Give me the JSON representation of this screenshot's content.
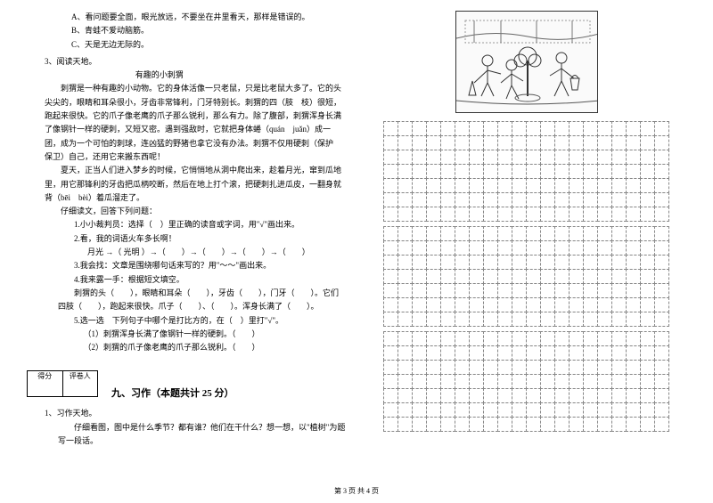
{
  "left": {
    "optA": "A、看问题要全面，眼光放远，不要坐在井里看天，那样是错误的。",
    "optB": "B、青蛙不爱动脑筋。",
    "optC": "C、天是无边无际的。",
    "q3": "3、阅读天地。",
    "storyTitle": "有趣的小刺猬",
    "p1": "　　刺猬是一种有趣的小动物。它的身体活像一只老鼠，只是比老鼠大多了。它的头尖尖的，眼睛和耳朵很小，牙齿非常锋利，门牙特别长。刺猬的四（肢　枝）很短，跑起来很快。它的爪子像老鹰的爪子那么锐利，那么有力。除了腹部，刺猬浑身长满了像钢针一样的硬刺，又短又密。遇到强敌时，它就把身体蜷（quán　juǎn）成一团，成为一个可怕的刺球，连凶猛的野猪也拿它没有办法。刺猬不仅用硬刺（保护　保卫）自己，还用它来搬东西呢！",
    "p2": "　　夏天，正当人们进入梦乡的时候，它悄悄地从洞中爬出来，趁着月光，窜到瓜地里，用它那锋利的牙齿把瓜柄咬断，然后在地上打个滚，把硬刺扎进瓜皮，一翻身就背（bēi　bèi）着瓜溜走了。",
    "q_intro": "　　仔细读文，回答下列问题：",
    "q1_1": "　　1.小小裁判员：选择（　）里正确的读音或字词，用\"√\"画出来。",
    "q1_2": "　　2.看，我的词语火车多长啊！",
    "q1_2b": "　　月光 →（ 光明 ）→（　　）→（　　）→（　　）→（　　）",
    "q1_3": "　　3.我会找：文章是围绕哪句话来写的？用\"～～\"画出来。",
    "q1_4": "　　4.我来露一手：根据短文填空。",
    "q1_4b": "　　刺猬的头（　　），眼睛和耳朵（　　），牙齿（　　），门牙（　　）。它们四肢（　　），跑起来很快。爪子（　　）、（　　）。浑身长满了（　　）。",
    "q1_5": "　　5.选一选　下列句子中哪个是打比方的，在（　）里打\"√\"。",
    "q1_5a": "　　（1）刺猬浑身长满了像钢针一样的硬刺。（　　）",
    "q1_5b": "　　（2）刺猬的爪子像老鹰的爪子那么锐利。（　　）",
    "scoreL": "得分",
    "scoreR": "评卷人",
    "section9": "九、习作（本题共计 25 分）",
    "xz1": "1、习作天地。",
    "xz1b": "　　仔细看图，图中是什么季节？都有谁？他们在干什么？想一想，以\"植树\"为题写一段话。"
  },
  "footer": "第 3 页 共 4 页",
  "grid": {
    "blocks": 3,
    "rowsPerBlock": 7,
    "cols": 20
  }
}
